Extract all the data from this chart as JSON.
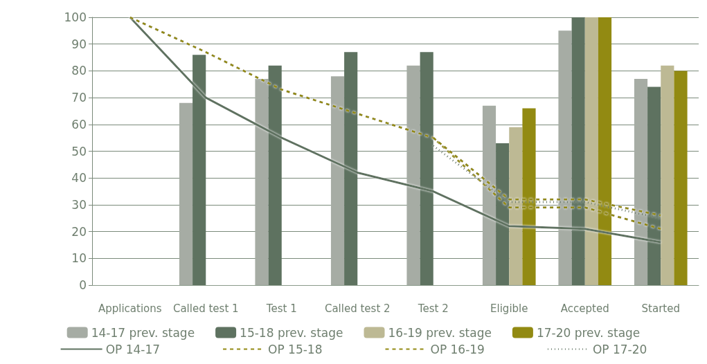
{
  "chart_data": {
    "type": "bar",
    "categories": [
      "Applications",
      "Called test 1",
      "Test 1",
      "Called test 2",
      "Test 2",
      "Eligible",
      "Accepted",
      "Started"
    ],
    "series": [
      {
        "name": "14-17 prev. stage",
        "color": "#a6aca4",
        "values": [
          null,
          68,
          77,
          78,
          82,
          67,
          95,
          77
        ]
      },
      {
        "name": "15-18 prev. stage",
        "color": "#5e7260",
        "values": [
          null,
          86,
          82,
          87,
          87,
          53,
          100,
          74
        ]
      },
      {
        "name": "16-19 prev. stage",
        "color": "#bdb994",
        "values": [
          null,
          null,
          null,
          null,
          null,
          59,
          100,
          82
        ]
      },
      {
        "name": "17-20 prev. stage",
        "color": "#928a12",
        "values": [
          null,
          null,
          null,
          null,
          null,
          66,
          100,
          80
        ]
      },
      {
        "name": "OP 14-17",
        "type": "line",
        "line_style": "solid",
        "color": "#5e7260",
        "values": [
          100,
          70,
          55,
          42,
          35,
          22,
          21,
          16
        ]
      },
      {
        "name": "OP 15-18",
        "type": "line",
        "line_style": "dashed",
        "color": "#928a12",
        "values": [
          100,
          87,
          73,
          64,
          55,
          29,
          29,
          21
        ]
      },
      {
        "name": "OP 16-19",
        "type": "line",
        "line_style": "dashed",
        "color": "#928a12",
        "values": [
          null,
          null,
          null,
          null,
          55,
          32,
          32,
          26
        ]
      },
      {
        "name": "OP 17-20",
        "type": "line",
        "line_style": "dotted",
        "color": "#5e7260",
        "values": [
          null,
          null,
          null,
          null,
          52,
          31,
          31,
          25
        ]
      }
    ],
    "ylim": [
      0,
      100
    ],
    "yticks": [
      0,
      10,
      20,
      30,
      40,
      50,
      60,
      70,
      80,
      90,
      100
    ],
    "grid": "y",
    "legend": "bottom",
    "marker": "none"
  }
}
